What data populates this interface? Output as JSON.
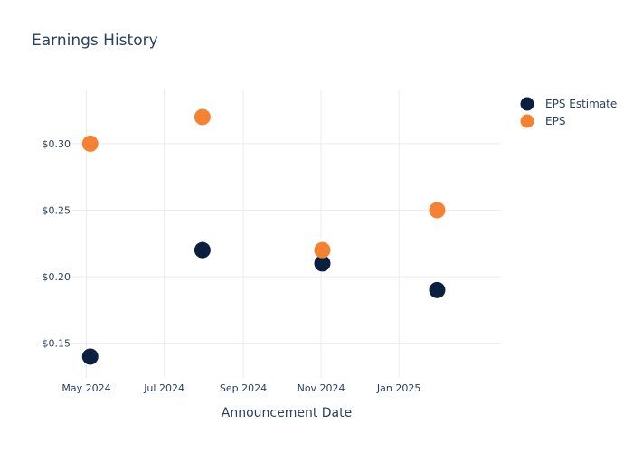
{
  "chart_data": {
    "type": "scatter",
    "title": "Earnings History",
    "xlabel": "Announcement Date",
    "ylabel": "",
    "x_tick_labels": [
      "May 2024",
      "Jul 2024",
      "Sep 2024",
      "Nov 2024",
      "Jan 2025"
    ],
    "x_tick_dates": [
      "2024-05-01",
      "2024-07-01",
      "2024-09-01",
      "2024-11-01",
      "2025-01-01"
    ],
    "xlim": [
      "2024-04-20",
      "2025-03-22"
    ],
    "y_tick_labels": [
      "$0.15",
      "$0.20",
      "$0.25",
      "$0.30"
    ],
    "y_tick_values": [
      0.15,
      0.2,
      0.25,
      0.3
    ],
    "ylim": [
      0.124,
      0.34
    ],
    "grid": true,
    "legend_position": "top-right",
    "series": [
      {
        "name": "EPS Estimate",
        "color": "#0b1f3f",
        "points": [
          {
            "x": "2024-05-04",
            "y": 0.14
          },
          {
            "x": "2024-07-31",
            "y": 0.22
          },
          {
            "x": "2024-11-02",
            "y": 0.21
          },
          {
            "x": "2025-01-31",
            "y": 0.19
          }
        ]
      },
      {
        "name": "EPS",
        "color": "#f58232",
        "points": [
          {
            "x": "2024-05-04",
            "y": 0.3
          },
          {
            "x": "2024-07-31",
            "y": 0.32
          },
          {
            "x": "2024-11-02",
            "y": 0.22
          },
          {
            "x": "2025-01-31",
            "y": 0.25
          }
        ]
      }
    ]
  }
}
